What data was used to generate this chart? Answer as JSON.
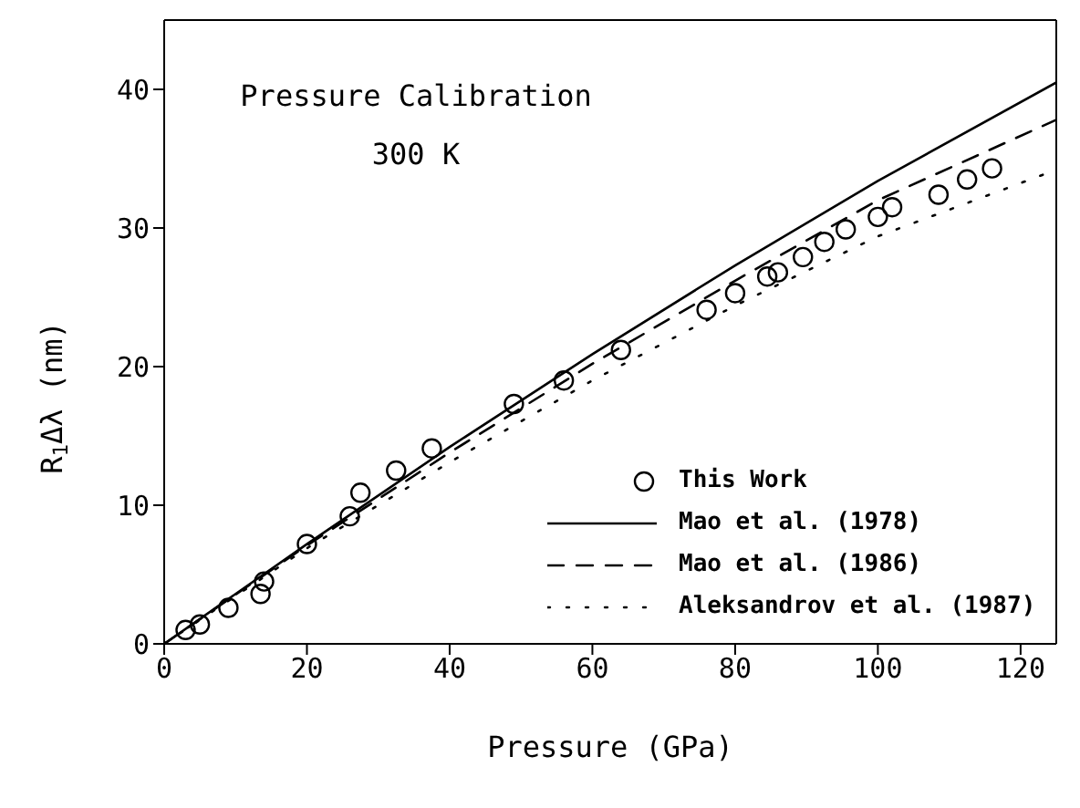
{
  "chart_data": {
    "type": "line",
    "annotations": [
      "Pressure Calibration",
      "300 K"
    ],
    "xlabel": "Pressure (GPa)",
    "ylabel": "R$_{1}$Δλ (nm)",
    "xlim": [
      0,
      125
    ],
    "ylim": [
      0,
      45
    ],
    "xticks": [
      0,
      20,
      40,
      60,
      80,
      100,
      120
    ],
    "yticks": [
      0,
      10,
      20,
      30,
      40
    ],
    "grid": false,
    "legend": "bottom right",
    "series": [
      {
        "name": "This Work",
        "type": "scatter",
        "marker": "circle",
        "color": "#000000",
        "x": [
          3,
          5,
          9,
          13.5,
          14,
          20,
          26,
          27.5,
          32.5,
          37.5,
          49,
          56,
          64,
          76,
          80,
          84.5,
          86,
          89.5,
          92.5,
          95.5,
          100,
          102,
          108.5,
          112.5,
          116
        ],
        "values": [
          1.0,
          1.4,
          2.6,
          3.6,
          4.5,
          7.2,
          9.2,
          10.9,
          12.5,
          14.1,
          17.3,
          19.0,
          21.2,
          24.1,
          25.3,
          26.5,
          26.8,
          27.9,
          29.0,
          29.9,
          30.8,
          31.5,
          32.4,
          33.5,
          34.3
        ]
      },
      {
        "name": "Mao et al. (1978)",
        "type": "line",
        "line_style": "solid",
        "color": "#000000",
        "x": [
          0,
          20,
          40,
          60,
          80,
          100,
          125
        ],
        "values": [
          0,
          7.2,
          14.2,
          20.9,
          27.3,
          33.4,
          40.5
        ]
      },
      {
        "name": "Mao et al. (1986)",
        "type": "line",
        "line_style": "dashed",
        "color": "#000000",
        "x": [
          0,
          20,
          40,
          60,
          80,
          100,
          125
        ],
        "values": [
          0,
          7.1,
          13.8,
          20.2,
          26.2,
          32.0,
          37.8
        ]
      },
      {
        "name": "Aleksandrov et al. (1987)",
        "type": "line",
        "line_style": "dotted",
        "color": "#000000",
        "x": [
          0,
          20,
          40,
          60,
          80,
          100,
          125
        ],
        "values": [
          0,
          6.9,
          13.1,
          19.0,
          24.4,
          29.4,
          34.2
        ]
      }
    ]
  }
}
